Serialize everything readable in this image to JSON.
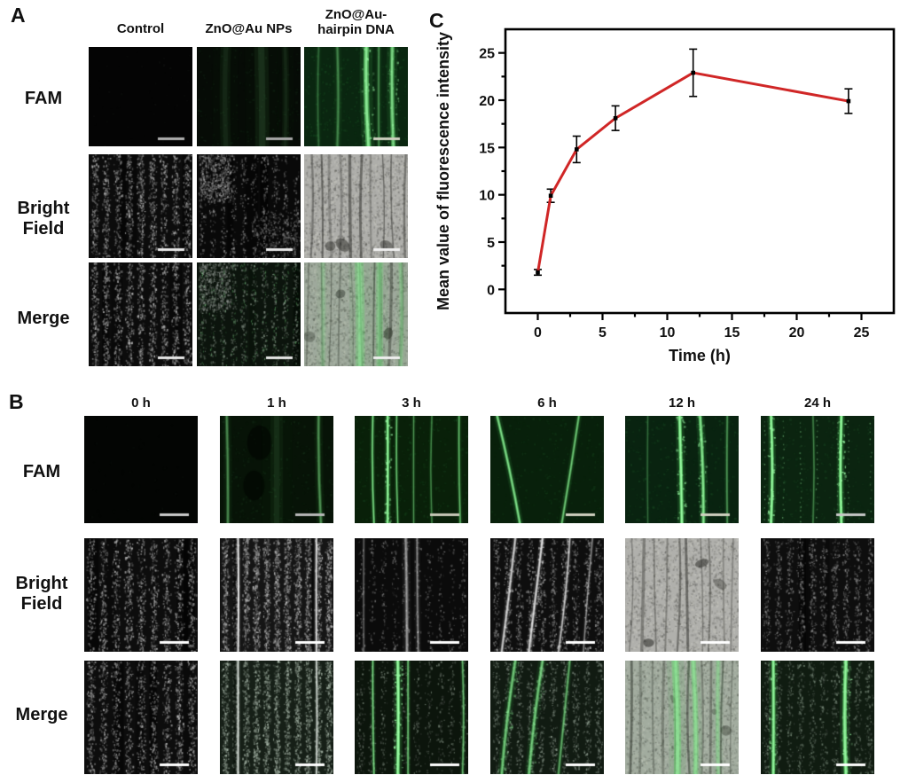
{
  "figure": {
    "panel_a_label": "A",
    "panel_b_label": "B",
    "panel_c_label": "C"
  },
  "panel_a": {
    "col_headers": [
      "Control",
      "ZnO@Au NPs"
    ],
    "col_header_3": [
      "ZnO@Au-",
      "hairpin DNA"
    ],
    "row_labels": [
      "FAM",
      "Bright Field",
      "Merge"
    ],
    "tiles": [
      [
        {
          "seed": 11,
          "bg": "#040404",
          "noise": [
            60,
            60,
            70,
            60,
            0.15
          ],
          "bar": "#b0b0b0"
        },
        {
          "seed": 12,
          "bg": "#060b06",
          "noise": [
            260,
            45,
            95,
            55,
            0.18
          ],
          "lines": [
            [
              0.28,
              0,
              12,
              0.05,
              "g",
              0
            ],
            [
              0.62,
              0.01,
              16,
              0.07,
              "g",
              0
            ],
            [
              0.85,
              0,
              8,
              0.05,
              "g",
              0
            ]
          ],
          "bar": "#a8a8a8"
        },
        {
          "seed": 13,
          "bg": "#0a2610",
          "noise": [
            420,
            40,
            120,
            55,
            0.22
          ],
          "lines": [
            [
              0.6,
              0.02,
              6,
              0.6,
              "g",
              1
            ],
            [
              0.85,
              0.01,
              5,
              0.5,
              "g",
              1
            ],
            [
              0.32,
              0,
              4,
              0.22,
              "g",
              0
            ],
            [
              0.14,
              0,
              3,
              0.15,
              "g",
              0
            ],
            [
              0.72,
              0,
              3,
              0.25,
              "g",
              0
            ]
          ],
          "bar": "#cfd0c0"
        }
      ],
      [
        {
          "seed": 14,
          "bg": "#0c0c0c",
          "spk": [
            9,
            1600,
            205,
            205,
            205,
            1
          ],
          "dbands": 4,
          "bar": "#e8e8e8"
        },
        {
          "seed": 15,
          "bg": "#090909",
          "spk": [
            10,
            800,
            190,
            190,
            190,
            0.85
          ],
          "patch": [
            [
              0.02,
              0,
              0.3,
              0.45,
              500,
              0.9
            ],
            [
              0.55,
              0.55,
              0.45,
              0.45,
              280,
              0.7
            ]
          ],
          "dbands": 3,
          "bar": "#e8e8e8"
        },
        {
          "seed": 16,
          "tissue": 1,
          "bg": "#aeaeaa",
          "veins": 10,
          "bar": "#f0f0f0"
        }
      ],
      [
        {
          "seed": 17,
          "bg": "#0c0c0c",
          "spk": [
            9,
            1600,
            205,
            205,
            205,
            1
          ],
          "dbands": 4,
          "bar": "#e8e8e8"
        },
        {
          "seed": 18,
          "bg": "#0a0d0a",
          "spk": [
            10,
            800,
            185,
            195,
            185,
            0.85
          ],
          "patch": [
            [
              0.02,
              0,
              0.3,
              0.45,
              450,
              0.85
            ]
          ],
          "spkg": [
            10,
            450,
            120,
            210,
            130,
            0.5
          ],
          "tint": "rgba(40,120,50,0.08)",
          "dbands": 3,
          "bar": "#e8e8e8"
        },
        {
          "seed": 19,
          "tissue": 1,
          "bg": "#a9ada6",
          "veins": 10,
          "lines": [
            [
              0.53,
              0.01,
              10,
              0.35,
              "g",
              0
            ],
            [
              0.73,
              0,
              8,
              0.3,
              "g",
              0
            ],
            [
              0.18,
              0,
              6,
              0.15,
              "g",
              0
            ],
            [
              0.93,
              0,
              5,
              0.22,
              "g",
              0
            ]
          ],
          "tint": "rgba(70,140,70,0.10)",
          "bar": "#f0f0f0"
        }
      ]
    ]
  },
  "panel_b": {
    "col_headers": [
      "0 h",
      "1 h",
      "3 h",
      "6 h",
      "12 h",
      "24 h"
    ],
    "row_labels": [
      "FAM",
      "Bright Field",
      "Merge"
    ],
    "tiles": [
      [
        {
          "seed": 21,
          "bg": "#030503",
          "noise": [
            50,
            50,
            70,
            55,
            0.12
          ],
          "bar": "#cccccc"
        },
        {
          "seed": 22,
          "bg": "#071307",
          "noise": [
            300,
            45,
            100,
            55,
            0.2
          ],
          "lines": [
            [
              0.06,
              0.01,
              4,
              0.25,
              "g",
              0
            ],
            [
              0.87,
              0.02,
              4,
              0.28,
              "g",
              0
            ],
            [
              0.5,
              0,
              14,
              0.05,
              "g",
              0
            ]
          ],
          "blobs": [
            [
              0.35,
              0.25,
              14,
              0.5
            ],
            [
              0.3,
              0.65,
              12,
              0.45
            ]
          ],
          "bar": "#b8b8b8"
        },
        {
          "seed": 23,
          "bg": "#092009",
          "noise": [
            380,
            40,
            115,
            55,
            0.22
          ],
          "lines": [
            [
              0.16,
              0.01,
              2.5,
              0.55,
              "g",
              0
            ],
            [
              0.29,
              0,
              3,
              0.8,
              "g",
              1
            ],
            [
              0.37,
              0.01,
              2,
              0.5,
              "g",
              0
            ],
            [
              0.52,
              0,
              2,
              0.3,
              "g",
              0
            ],
            [
              0.68,
              0,
              2,
              0.26,
              "g",
              0
            ],
            [
              0.92,
              0.01,
              2.5,
              0.4,
              "g",
              0
            ]
          ],
          "bar": "#c8c8b8"
        },
        {
          "seed": 24,
          "bg": "#08200b",
          "noise": [
            300,
            40,
            110,
            50,
            0.2
          ],
          "lines": [
            [
              0.06,
              0.2,
              3.5,
              0.55,
              "g",
              0
            ],
            [
              0.78,
              -0.15,
              3,
              0.45,
              "g",
              0
            ]
          ],
          "bar": "#d0d0c0"
        },
        {
          "seed": 25,
          "bg": "#092310",
          "noise": [
            400,
            40,
            120,
            55,
            0.24
          ],
          "lines": [
            [
              0.48,
              0.02,
              4,
              0.75,
              "g",
              1
            ],
            [
              0.66,
              0.03,
              4,
              0.6,
              "g",
              1
            ],
            [
              0.9,
              0,
              2.5,
              0.3,
              "g",
              0
            ],
            [
              0.2,
              0,
              2,
              0.18,
              "g",
              0
            ]
          ],
          "bar": "#d0d0c0"
        },
        {
          "seed": 26,
          "bg": "#0b2410",
          "noise": [
            350,
            45,
            120,
            60,
            0.22
          ],
          "lines": [
            [
              0.09,
              0,
              3.5,
              0.8,
              "g",
              1
            ],
            [
              0.71,
              0,
              3.5,
              0.85,
              "g",
              1
            ],
            [
              0.46,
              0,
              2,
              0.25,
              "g",
              0
            ]
          ],
          "dots": [
            7,
            0.55
          ],
          "bar": "#c8c8c8"
        }
      ],
      [
        {
          "seed": 31,
          "bg": "#0d0d0d",
          "spk": [
            9,
            1700,
            205,
            205,
            205,
            1
          ],
          "dbands": 4,
          "bar": "#ffffff"
        },
        {
          "seed": 32,
          "bg": "#151515",
          "spk": [
            11,
            3000,
            215,
            215,
            215,
            1
          ],
          "lines": [
            [
              0.16,
              0,
              2,
              0.8,
              "w",
              0
            ],
            [
              0.85,
              0,
              2,
              0.7,
              "w",
              0
            ]
          ],
          "dlines": [
            [
              0.12,
              3,
              0.6
            ],
            [
              0.81,
              2,
              0.5
            ]
          ],
          "bar": "#ffffff"
        },
        {
          "seed": 33,
          "bg": "#0b0b0b",
          "spk": [
            10,
            650,
            180,
            180,
            180,
            0.8
          ],
          "lines": [
            [
              0.45,
              0.01,
              4,
              0.3,
              "w",
              0
            ],
            [
              0.55,
              0.01,
              3,
              0.25,
              "w",
              0
            ],
            [
              0.08,
              0,
              2,
              0.2,
              "w",
              0
            ]
          ],
          "bar": "#ffffff"
        },
        {
          "seed": 34,
          "bg": "#0e0e0e",
          "spk": [
            10,
            1400,
            200,
            200,
            200,
            0.9
          ],
          "lines": [
            [
              0.22,
              -0.12,
              3,
              0.5,
              "w",
              1
            ],
            [
              0.46,
              -0.12,
              3,
              0.55,
              "w",
              1
            ],
            [
              0.7,
              -0.1,
              2.5,
              0.45,
              "w",
              1
            ],
            [
              0.9,
              -0.08,
              2,
              0.3,
              "w",
              0
            ]
          ],
          "bar": "#ffffff"
        },
        {
          "seed": 35,
          "tissue": 1,
          "bg": "#b0b0ac",
          "veins": 10,
          "bar": "#ffffff"
        },
        {
          "seed": 36,
          "bg": "#0e0e0e",
          "spk": [
            10,
            1400,
            190,
            190,
            190,
            0.85
          ],
          "dbands": 3,
          "bar": "#ffffff"
        }
      ],
      [
        {
          "seed": 41,
          "bg": "#0d0d0d",
          "spk": [
            9,
            1700,
            205,
            205,
            205,
            1
          ],
          "dbands": 4,
          "bar": "#ffffff"
        },
        {
          "seed": 42,
          "bg": "#131613",
          "spk": [
            11,
            2800,
            210,
            220,
            210,
            1
          ],
          "lines": [
            [
              0.16,
              0,
              2,
              0.8,
              "w",
              0
            ],
            [
              0.85,
              0,
              2,
              0.65,
              "w",
              0
            ]
          ],
          "dlines": [
            [
              0.12,
              3,
              0.6
            ]
          ],
          "tint": "rgba(50,120,60,0.10)",
          "bar": "#ffffff"
        },
        {
          "seed": 43,
          "bg": "#0c150c",
          "spk": [
            10,
            850,
            170,
            190,
            170,
            0.75
          ],
          "lines": [
            [
              0.38,
              0,
              4,
              0.8,
              "g",
              1
            ],
            [
              0.16,
              0.01,
              2.5,
              0.5,
              "g",
              0
            ],
            [
              0.47,
              0,
              2.5,
              0.45,
              "g",
              0
            ],
            [
              0.95,
              0,
              2.5,
              0.4,
              "g",
              0
            ]
          ],
          "bar": "#ffffff"
        },
        {
          "seed": 44,
          "bg": "#0f120f",
          "spk": [
            10,
            1300,
            195,
            205,
            195,
            0.85
          ],
          "lines": [
            [
              0.22,
              -0.12,
              4,
              0.5,
              "g",
              1
            ],
            [
              0.46,
              -0.12,
              4,
              0.5,
              "g",
              1
            ],
            [
              0.7,
              -0.1,
              3,
              0.4,
              "g",
              0
            ]
          ],
          "tint": "rgba(40,110,50,0.10)",
          "bar": "#ffffff"
        },
        {
          "seed": 45,
          "tissue": 1,
          "bg": "#abafa8",
          "veins": 10,
          "lines": [
            [
              0.44,
              0.02,
              8,
              0.45,
              "g",
              0
            ],
            [
              0.6,
              0.02,
              6,
              0.4,
              "g",
              0
            ],
            [
              0.82,
              0,
              5,
              0.25,
              "g",
              0
            ]
          ],
          "tint": "rgba(70,140,70,0.08)",
          "bar": "#ffffff"
        },
        {
          "seed": 46,
          "bg": "#101710",
          "spk": [
            10,
            1200,
            180,
            200,
            180,
            0.8
          ],
          "lines": [
            [
              0.11,
              0,
              4,
              0.8,
              "g",
              1
            ],
            [
              0.75,
              0,
              4.5,
              0.85,
              "g",
              1
            ]
          ],
          "tint": "rgba(30,90,40,0.08)",
          "bar": "#ffffff"
        }
      ]
    ]
  },
  "chart_data": {
    "type": "line",
    "title": "",
    "xlabel": "Time (h)",
    "ylabel": "Mean value of fluorescence intensity",
    "x": [
      0,
      1,
      3,
      6,
      12,
      24
    ],
    "y": [
      1.8,
      9.9,
      14.8,
      18.1,
      22.9,
      19.9
    ],
    "yerr": [
      0.3,
      0.7,
      1.4,
      1.3,
      2.5,
      1.3
    ],
    "xlim": [
      -2.5,
      27.5
    ],
    "ylim": [
      -2.5,
      27.5
    ],
    "xticks": [
      0,
      5,
      10,
      15,
      20,
      25
    ],
    "yticks": [
      0,
      5,
      10,
      15,
      20,
      25
    ],
    "minor_step": 2.5,
    "grid": false,
    "legend": null,
    "line_color": "#d02626",
    "marker_color": "#000000"
  }
}
